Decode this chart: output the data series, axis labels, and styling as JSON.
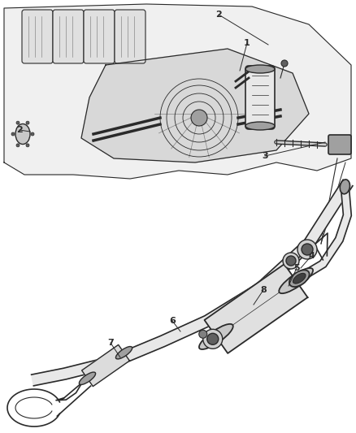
{
  "bg_color": "#ffffff",
  "line_color": "#2a2a2a",
  "gray_light": "#d0d0d0",
  "gray_mid": "#a0a0a0",
  "gray_dark": "#606060",
  "figsize": [
    4.38,
    5.33
  ],
  "dpi": 100,
  "labels": {
    "1": [
      0.695,
      0.735,
      "1"
    ],
    "2a": [
      0.615,
      0.945,
      "2"
    ],
    "2b": [
      0.055,
      0.675,
      "2"
    ],
    "3": [
      0.745,
      0.618,
      "3"
    ],
    "4": [
      0.875,
      0.453,
      "4"
    ],
    "5": [
      0.835,
      0.428,
      "5"
    ],
    "6": [
      0.485,
      0.318,
      "6"
    ],
    "7": [
      0.31,
      0.285,
      "7"
    ],
    "8": [
      0.74,
      0.378,
      "8"
    ]
  }
}
